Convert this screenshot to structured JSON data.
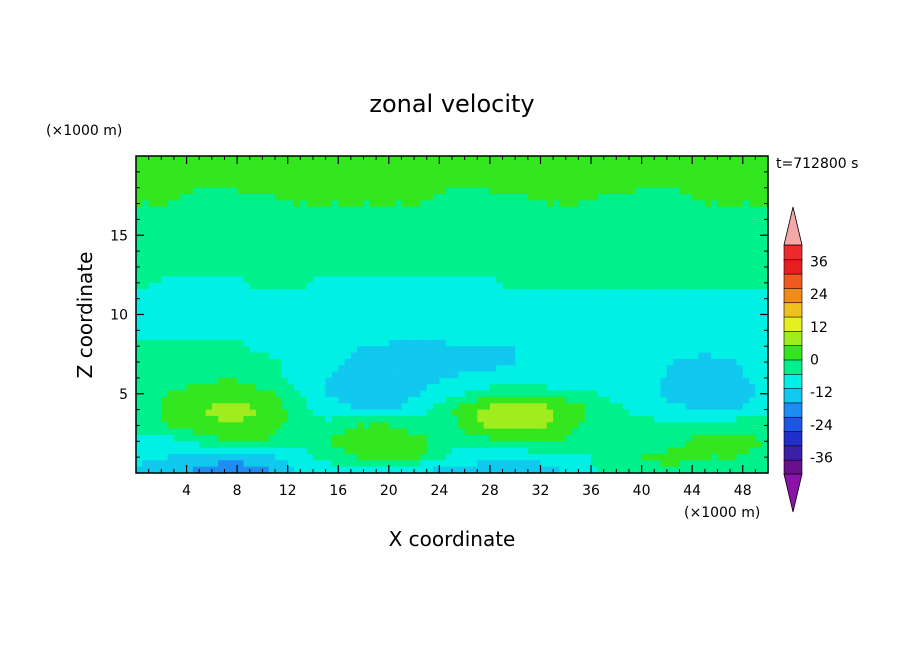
{
  "chart_data": {
    "type": "heatmap",
    "title": "zonal velocity",
    "xlabel": "X coordinate",
    "ylabel": "Z coordinate",
    "x_unit": "(×1000 m)",
    "y_unit": "(×1000 m)",
    "time_label": "t=712800 s",
    "xlim": [
      0,
      50
    ],
    "ylim": [
      0,
      20
    ],
    "x_ticks": [
      4,
      8,
      12,
      16,
      20,
      24,
      28,
      32,
      36,
      40,
      44,
      48
    ],
    "y_ticks": [
      5,
      10,
      15
    ],
    "colorbar": {
      "levels": [
        -42,
        -36,
        -30,
        -24,
        -18,
        -12,
        -6,
        0,
        6,
        12,
        18,
        24,
        30,
        36,
        42
      ],
      "labeled_ticks": [
        -36,
        -24,
        -12,
        0,
        12,
        24,
        36
      ],
      "colors": [
        "#6a0f8e",
        "#3a1fa8",
        "#1f2fc8",
        "#1f55e6",
        "#1e8cf0",
        "#11c8ee",
        "#00f0e6",
        "#00f08c",
        "#33e61f",
        "#a0ec1e",
        "#e6f01e",
        "#f0c01e",
        "#f08c1e",
        "#f05a1e",
        "#e61e1e",
        "#ee2a2a"
      ],
      "under_color": "#8a14a8",
      "over_color": "#f4a8a8"
    },
    "grid": false,
    "legend": "right",
    "field": {
      "x": [
        0,
        2.5,
        5,
        7.5,
        10,
        12.5,
        15,
        17.5,
        20,
        22.5,
        25,
        27.5,
        30,
        32.5,
        35,
        37.5,
        40,
        42.5,
        45,
        47.5,
        50
      ],
      "y": [
        0,
        1,
        2,
        3,
        4,
        5,
        6,
        7,
        8,
        9,
        10,
        11,
        12,
        13,
        14,
        15,
        16,
        17,
        18,
        19,
        20
      ],
      "values": [
        [
          -8,
          -10,
          -14,
          -18,
          -14,
          -6,
          -4,
          -4,
          -6,
          -8,
          -8,
          -10,
          -10,
          -8,
          -4,
          2,
          4,
          4,
          2,
          2,
          2
        ],
        [
          -4,
          -6,
          -8,
          -10,
          -8,
          -4,
          2,
          6,
          8,
          6,
          -2,
          -4,
          -6,
          -4,
          -2,
          4,
          6,
          8,
          6,
          6,
          4
        ],
        [
          -2,
          -2,
          2,
          6,
          6,
          2,
          6,
          10,
          12,
          8,
          2,
          4,
          8,
          8,
          4,
          2,
          2,
          4,
          8,
          8,
          6
        ],
        [
          2,
          6,
          10,
          12,
          10,
          4,
          2,
          6,
          6,
          2,
          4,
          12,
          14,
          12,
          6,
          2,
          2,
          2,
          4,
          4,
          2
        ],
        [
          2,
          8,
          12,
          14,
          12,
          4,
          -4,
          -6,
          -8,
          -2,
          6,
          14,
          16,
          14,
          8,
          2,
          -2,
          -4,
          -8,
          -6,
          -2
        ],
        [
          2,
          6,
          8,
          10,
          8,
          2,
          -6,
          -8,
          -10,
          -6,
          -2,
          2,
          6,
          4,
          2,
          -2,
          -4,
          -8,
          -12,
          -10,
          -4
        ],
        [
          2,
          4,
          4,
          6,
          2,
          -2,
          -6,
          -8,
          -10,
          -8,
          -6,
          -4,
          -4,
          -6,
          -4,
          -2,
          -2,
          -8,
          -10,
          -8,
          -2
        ],
        [
          2,
          2,
          2,
          2,
          2,
          -2,
          -4,
          -8,
          -10,
          -10,
          -8,
          -8,
          -6,
          -4,
          -4,
          -2,
          -2,
          -6,
          -8,
          -6,
          -2
        ],
        [
          2,
          2,
          2,
          2,
          -2,
          -2,
          -2,
          -6,
          -6,
          -8,
          -6,
          -6,
          -6,
          -4,
          -4,
          -2,
          -2,
          -2,
          -4,
          -2,
          -2
        ],
        [
          -2,
          -2,
          -2,
          -2,
          -2,
          -2,
          -2,
          -6,
          -6,
          -4,
          -4,
          -4,
          -6,
          -6,
          -4,
          -4,
          -2,
          -2,
          -2,
          -2,
          -2
        ],
        [
          -2,
          -2,
          -2,
          -2,
          -2,
          -2,
          -2,
          -2,
          -2,
          -2,
          -2,
          -2,
          -2,
          -2,
          -2,
          -2,
          -2,
          -2,
          -2,
          -2,
          -2
        ],
        [
          -2,
          -2,
          -2,
          -2,
          -2,
          -2,
          -2,
          -2,
          -2,
          -2,
          -2,
          -2,
          -2,
          -2,
          -2,
          -2,
          -2,
          -2,
          -2,
          -2,
          -2
        ],
        [
          2,
          -2,
          -2,
          -2,
          2,
          2,
          -2,
          -2,
          -2,
          -2,
          -2,
          -2,
          2,
          2,
          2,
          2,
          2,
          2,
          2,
          2,
          2
        ],
        [
          6,
          4,
          2,
          2,
          2,
          2,
          2,
          2,
          2,
          2,
          2,
          2,
          4,
          4,
          4,
          4,
          4,
          4,
          4,
          4,
          4
        ],
        [
          4,
          2,
          2,
          2,
          4,
          4,
          4,
          2,
          2,
          2,
          4,
          4,
          4,
          4,
          4,
          4,
          2,
          2,
          4,
          4,
          4
        ],
        [
          4,
          4,
          2,
          2,
          4,
          4,
          4,
          4,
          4,
          4,
          4,
          2,
          2,
          4,
          4,
          4,
          2,
          2,
          2,
          2,
          4
        ],
        [
          4,
          4,
          4,
          4,
          4,
          4,
          4,
          4,
          4,
          4,
          2,
          2,
          4,
          4,
          4,
          4,
          4,
          4,
          4,
          4,
          4
        ],
        [
          6,
          6,
          4,
          4,
          4,
          6,
          6,
          6,
          6,
          6,
          4,
          4,
          4,
          6,
          6,
          4,
          4,
          4,
          6,
          6,
          6
        ],
        [
          8,
          8,
          6,
          6,
          8,
          8,
          8,
          8,
          8,
          8,
          6,
          6,
          8,
          8,
          8,
          8,
          6,
          6,
          8,
          8,
          8
        ],
        [
          8,
          8,
          8,
          8,
          8,
          8,
          10,
          10,
          10,
          8,
          8,
          8,
          8,
          8,
          8,
          8,
          8,
          8,
          8,
          8,
          8
        ],
        [
          8,
          8,
          8,
          8,
          8,
          8,
          10,
          12,
          10,
          8,
          8,
          8,
          8,
          8,
          8,
          8,
          8,
          8,
          8,
          8,
          8
        ]
      ]
    }
  }
}
